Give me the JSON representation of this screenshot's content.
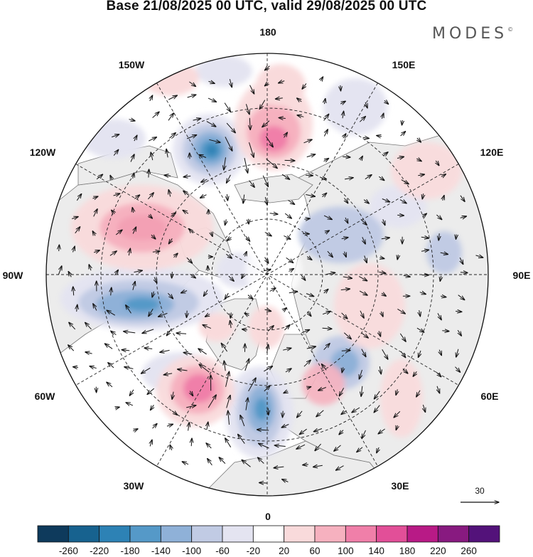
{
  "title": "Base 21/08/2025 00 UTC, valid 29/08/2025 00 UTC",
  "brand": "MODES",
  "brand_mark": "©",
  "longitude_labels": {
    "lon_180": "180",
    "lon_150e": "150E",
    "lon_120e": "120E",
    "lon_90e": "90E",
    "lon_60e": "60E",
    "lon_30e": "30E",
    "lon_0": "0",
    "lon_30w": "30W",
    "lon_60w": "60W",
    "lon_90w": "90W",
    "lon_120w": "120W",
    "lon_150w": "150W"
  },
  "vector_reference": "30",
  "colorbar": {
    "labels": [
      "-260",
      "-220",
      "-180",
      "-140",
      "-100",
      "-60",
      "-20",
      "20",
      "60",
      "100",
      "140",
      "180",
      "220",
      "260"
    ],
    "colors": [
      "#0e3a5c",
      "#17628f",
      "#2d82b5",
      "#5599c8",
      "#8fb1d8",
      "#c1cbe4",
      "#e4e4f1",
      "#ffffff",
      "#f9dadb",
      "#f6b1bf",
      "#f07fa9",
      "#e24f98",
      "#b81a86",
      "#881a80",
      "#53127a"
    ]
  },
  "colors": {
    "land": "#ececec",
    "coast": "#666666",
    "grid": "#222222",
    "arrow": "#111111"
  }
}
